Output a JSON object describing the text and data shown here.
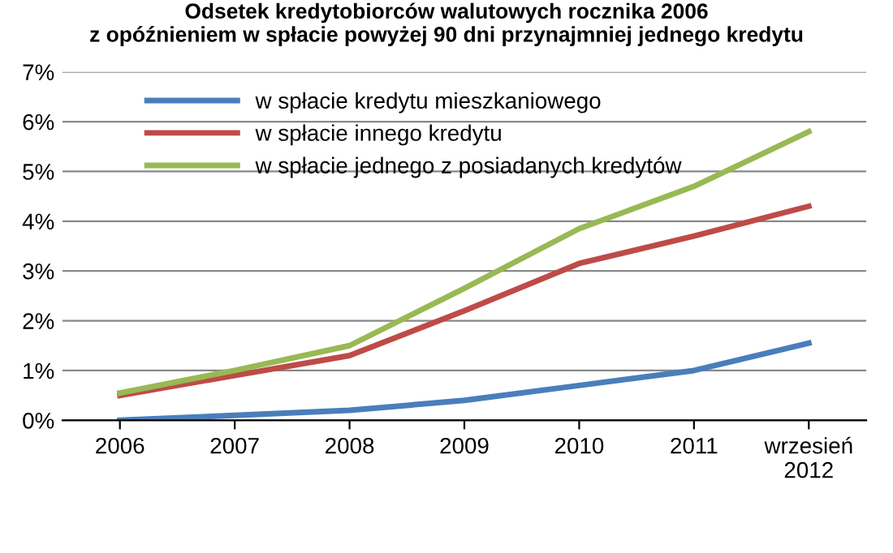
{
  "chart_data": {
    "type": "line",
    "title": "Odsetek kredytobiorców walutowych rocznika 2006\nz opóźnieniem w spłacie powyżej 90 dni przynajmniej jednego kredytu",
    "categories": [
      "2006",
      "2007",
      "2008",
      "2009",
      "2010",
      "2011",
      "wrzesień\n2012"
    ],
    "series": [
      {
        "name": "w spłacie kredytu mieszkaniowego",
        "color": "#4a7ebb",
        "values": [
          0.0,
          0.1,
          0.2,
          0.4,
          0.7,
          1.0,
          1.55
        ]
      },
      {
        "name": "w spłacie innego kredytu",
        "color": "#be4b48",
        "values": [
          0.5,
          0.9,
          1.3,
          2.2,
          3.15,
          3.7,
          4.3
        ]
      },
      {
        "name": "w spłacie jednego z posiadanych kredytów",
        "color": "#98b954",
        "values": [
          0.55,
          1.0,
          1.5,
          2.65,
          3.85,
          4.7,
          5.8
        ]
      }
    ],
    "ylim": [
      0,
      7
    ],
    "yticks": [
      {
        "value": 0,
        "label": "0%"
      },
      {
        "value": 1,
        "label": "1%"
      },
      {
        "value": 2,
        "label": "2%"
      },
      {
        "value": 3,
        "label": "3%"
      },
      {
        "value": 4,
        "label": "4%"
      },
      {
        "value": 5,
        "label": "5%"
      },
      {
        "value": 6,
        "label": "6%"
      },
      {
        "value": 7,
        "label": "7%"
      }
    ],
    "grid": "y",
    "legend": "top left",
    "marker": "none",
    "line_style": "solid"
  }
}
